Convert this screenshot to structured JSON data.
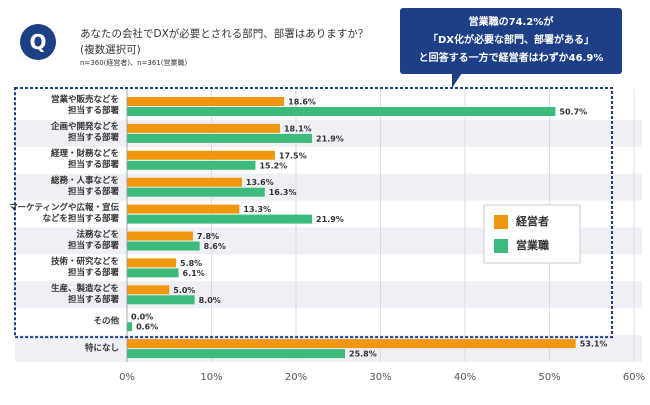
{
  "header": {
    "badge": "Q",
    "title": "あなたの会社でDXが必要とされる部門、部署はありますか？",
    "subtitle": "(複数選択可)",
    "note": "n=360(経営者)、n=361(営業職)"
  },
  "callout": [
    "営業職の74.2%が",
    "「DX化が必要な部門、部署がある」",
    "と回答する一方で経営者はわずか46.9%"
  ],
  "chart_data": {
    "type": "hbar",
    "categories": [
      "営業や販売などを\n担当する部署",
      "企画や開発などを\n担当する部署",
      "経理・財務などを\n担当する部署",
      "総務・人事などを\n担当する部署",
      "マーケティングや広報・宣伝\nなどを担当する部署",
      "法務などを\n担当する部署",
      "技術・研究などを\n担当する部署",
      "生産、製造などを\n担当する部署",
      "その他",
      "特になし"
    ],
    "series": [
      {
        "name": "経営者",
        "color": "#f0960f",
        "values": [
          18.6,
          18.1,
          17.5,
          13.6,
          13.3,
          7.8,
          5.8,
          5.0,
          0.0,
          53.1
        ],
        "value_labels": [
          "18.6%",
          "18.1%",
          "17.5%",
          "13.6%",
          "13.3%",
          "7.8%",
          "5.8%",
          "5.0%",
          "0.0%",
          "53.1%"
        ]
      },
      {
        "name": "営業職",
        "color": "#3dbb7d",
        "values": [
          50.7,
          21.9,
          15.2,
          16.3,
          21.9,
          8.6,
          6.1,
          8.0,
          0.6,
          25.8
        ],
        "value_labels": [
          "50.7%",
          "21.9%",
          "15.2%",
          "16.3%",
          "21.9%",
          "8.6%",
          "6.1%",
          "8.0%",
          "0.6%",
          "25.8%"
        ]
      }
    ],
    "xlim": [
      0,
      60
    ],
    "xticks": [
      {
        "value": 0,
        "label": "0%"
      },
      {
        "value": 10,
        "label": "10%"
      },
      {
        "value": 20,
        "label": "20%"
      },
      {
        "value": 30,
        "label": "30%"
      },
      {
        "value": 40,
        "label": "40%"
      },
      {
        "value": 50,
        "label": "50%"
      },
      {
        "value": 60,
        "label": "60%"
      }
    ],
    "grid": true
  }
}
